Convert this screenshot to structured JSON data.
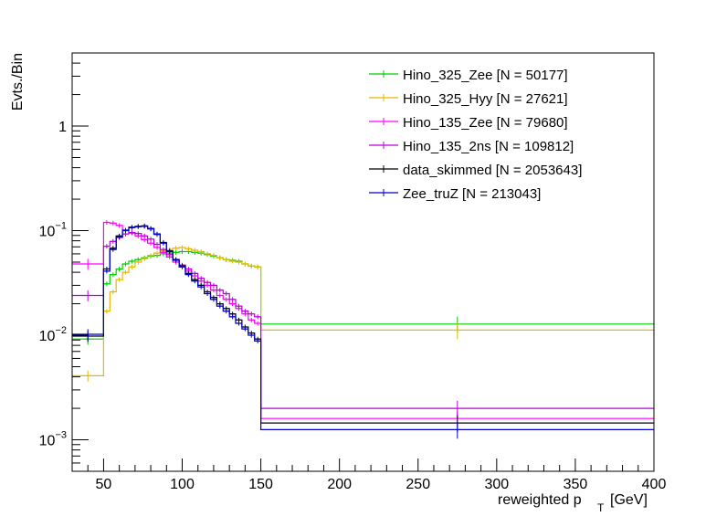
{
  "chart_data": {
    "type": "line",
    "title": "",
    "xlabel_main": "reweighted p",
    "xlabel_sub": "T",
    "xlabel_unit": "[GeV]",
    "ylabel": "Evts./Bin",
    "xlim": [
      30,
      400
    ],
    "ylim": [
      0.0005,
      5
    ],
    "yscale": "log",
    "legend_position": "top-right",
    "x_ticks": [
      50,
      100,
      150,
      200,
      250,
      300,
      350,
      400
    ],
    "x_tick_labels": [
      "50",
      "100",
      "150",
      "200",
      "250",
      "300",
      "350",
      "400"
    ],
    "y_ticks": [
      0.001,
      0.01,
      0.1,
      1
    ],
    "y_tick_labels": [
      {
        "base": "10",
        "exp": "−3"
      },
      {
        "base": "10",
        "exp": "−2"
      },
      {
        "base": "10",
        "exp": "−1"
      },
      {
        "base": "1",
        "exp": ""
      }
    ],
    "series": [
      {
        "name": "Hino_325_Zee [N = 50177]",
        "color": "#00cc00",
        "bins": [
          {
            "x0": 30,
            "x1": 50,
            "y": 0.0092
          },
          {
            "x0": 50,
            "x1": 54,
            "y": 0.031
          },
          {
            "x0": 54,
            "x1": 58,
            "y": 0.038
          },
          {
            "x0": 58,
            "x1": 62,
            "y": 0.043
          },
          {
            "x0": 62,
            "x1": 66,
            "y": 0.048
          },
          {
            "x0": 66,
            "x1": 70,
            "y": 0.051
          },
          {
            "x0": 70,
            "x1": 74,
            "y": 0.053
          },
          {
            "x0": 74,
            "x1": 78,
            "y": 0.055
          },
          {
            "x0": 78,
            "x1": 82,
            "y": 0.057
          },
          {
            "x0": 82,
            "x1": 86,
            "y": 0.058
          },
          {
            "x0": 86,
            "x1": 90,
            "y": 0.06
          },
          {
            "x0": 90,
            "x1": 94,
            "y": 0.061
          },
          {
            "x0": 94,
            "x1": 98,
            "y": 0.062
          },
          {
            "x0": 98,
            "x1": 102,
            "y": 0.063
          },
          {
            "x0": 102,
            "x1": 106,
            "y": 0.063
          },
          {
            "x0": 106,
            "x1": 110,
            "y": 0.062
          },
          {
            "x0": 110,
            "x1": 114,
            "y": 0.061
          },
          {
            "x0": 114,
            "x1": 118,
            "y": 0.059
          },
          {
            "x0": 118,
            "x1": 122,
            "y": 0.057
          },
          {
            "x0": 122,
            "x1": 126,
            "y": 0.055
          },
          {
            "x0": 126,
            "x1": 130,
            "y": 0.053
          },
          {
            "x0": 130,
            "x1": 134,
            "y": 0.052
          },
          {
            "x0": 134,
            "x1": 138,
            "y": 0.051
          },
          {
            "x0": 138,
            "x1": 142,
            "y": 0.048
          },
          {
            "x0": 142,
            "x1": 146,
            "y": 0.046
          },
          {
            "x0": 146,
            "x1": 150,
            "y": 0.045
          },
          {
            "x0": 150,
            "x1": 400,
            "y": 0.0128
          }
        ]
      },
      {
        "name": "Hino_325_Hyy [N = 27621]",
        "color": "#e6b800",
        "bins": [
          {
            "x0": 30,
            "x1": 50,
            "y": 0.0041
          },
          {
            "x0": 50,
            "x1": 54,
            "y": 0.017
          },
          {
            "x0": 54,
            "x1": 58,
            "y": 0.026
          },
          {
            "x0": 58,
            "x1": 62,
            "y": 0.034
          },
          {
            "x0": 62,
            "x1": 66,
            "y": 0.04
          },
          {
            "x0": 66,
            "x1": 70,
            "y": 0.045
          },
          {
            "x0": 70,
            "x1": 74,
            "y": 0.05
          },
          {
            "x0": 74,
            "x1": 78,
            "y": 0.054
          },
          {
            "x0": 78,
            "x1": 82,
            "y": 0.058
          },
          {
            "x0": 82,
            "x1": 86,
            "y": 0.061
          },
          {
            "x0": 86,
            "x1": 90,
            "y": 0.064
          },
          {
            "x0": 90,
            "x1": 94,
            "y": 0.066
          },
          {
            "x0": 94,
            "x1": 98,
            "y": 0.068
          },
          {
            "x0": 98,
            "x1": 102,
            "y": 0.069
          },
          {
            "x0": 102,
            "x1": 106,
            "y": 0.067
          },
          {
            "x0": 106,
            "x1": 110,
            "y": 0.065
          },
          {
            "x0": 110,
            "x1": 114,
            "y": 0.063
          },
          {
            "x0": 114,
            "x1": 118,
            "y": 0.06
          },
          {
            "x0": 118,
            "x1": 122,
            "y": 0.058
          },
          {
            "x0": 122,
            "x1": 126,
            "y": 0.055
          },
          {
            "x0": 126,
            "x1": 130,
            "y": 0.053
          },
          {
            "x0": 130,
            "x1": 134,
            "y": 0.051
          },
          {
            "x0": 134,
            "x1": 138,
            "y": 0.05
          },
          {
            "x0": 138,
            "x1": 142,
            "y": 0.048
          },
          {
            "x0": 142,
            "x1": 146,
            "y": 0.046
          },
          {
            "x0": 146,
            "x1": 150,
            "y": 0.045
          },
          {
            "x0": 150,
            "x1": 400,
            "y": 0.0112
          }
        ]
      },
      {
        "name": "Hino_135_Zee [N = 79680]",
        "color": "#ff00ff",
        "bins": [
          {
            "x0": 30,
            "x1": 50,
            "y": 0.048
          },
          {
            "x0": 50,
            "x1": 54,
            "y": 0.12
          },
          {
            "x0": 54,
            "x1": 58,
            "y": 0.118
          },
          {
            "x0": 58,
            "x1": 62,
            "y": 0.112
          },
          {
            "x0": 62,
            "x1": 66,
            "y": 0.1
          },
          {
            "x0": 66,
            "x1": 70,
            "y": 0.095
          },
          {
            "x0": 70,
            "x1": 74,
            "y": 0.089
          },
          {
            "x0": 74,
            "x1": 78,
            "y": 0.082
          },
          {
            "x0": 78,
            "x1": 82,
            "y": 0.076
          },
          {
            "x0": 82,
            "x1": 86,
            "y": 0.069
          },
          {
            "x0": 86,
            "x1": 90,
            "y": 0.062
          },
          {
            "x0": 90,
            "x1": 94,
            "y": 0.056
          },
          {
            "x0": 94,
            "x1": 98,
            "y": 0.05
          },
          {
            "x0": 98,
            "x1": 102,
            "y": 0.045
          },
          {
            "x0": 102,
            "x1": 106,
            "y": 0.041
          },
          {
            "x0": 106,
            "x1": 110,
            "y": 0.037
          },
          {
            "x0": 110,
            "x1": 114,
            "y": 0.033
          },
          {
            "x0": 114,
            "x1": 118,
            "y": 0.03
          },
          {
            "x0": 118,
            "x1": 122,
            "y": 0.027
          },
          {
            "x0": 122,
            "x1": 126,
            "y": 0.024
          },
          {
            "x0": 126,
            "x1": 130,
            "y": 0.022
          },
          {
            "x0": 130,
            "x1": 134,
            "y": 0.02
          },
          {
            "x0": 134,
            "x1": 138,
            "y": 0.018
          },
          {
            "x0": 138,
            "x1": 142,
            "y": 0.016
          },
          {
            "x0": 142,
            "x1": 146,
            "y": 0.014
          },
          {
            "x0": 146,
            "x1": 150,
            "y": 0.013
          },
          {
            "x0": 150,
            "x1": 400,
            "y": 0.0016
          }
        ]
      },
      {
        "name": "Hino_135_2ns [N = 109812]",
        "color": "#bb00dd",
        "bins": [
          {
            "x0": 30,
            "x1": 50,
            "y": 0.024
          },
          {
            "x0": 50,
            "x1": 54,
            "y": 0.071
          },
          {
            "x0": 54,
            "x1": 58,
            "y": 0.079
          },
          {
            "x0": 58,
            "x1": 62,
            "y": 0.086
          },
          {
            "x0": 62,
            "x1": 66,
            "y": 0.093
          },
          {
            "x0": 66,
            "x1": 70,
            "y": 0.096
          },
          {
            "x0": 70,
            "x1": 74,
            "y": 0.094
          },
          {
            "x0": 74,
            "x1": 78,
            "y": 0.089
          },
          {
            "x0": 78,
            "x1": 82,
            "y": 0.083
          },
          {
            "x0": 82,
            "x1": 86,
            "y": 0.074
          },
          {
            "x0": 86,
            "x1": 90,
            "y": 0.066
          },
          {
            "x0": 90,
            "x1": 94,
            "y": 0.059
          },
          {
            "x0": 94,
            "x1": 98,
            "y": 0.053
          },
          {
            "x0": 98,
            "x1": 102,
            "y": 0.047
          },
          {
            "x0": 102,
            "x1": 106,
            "y": 0.043
          },
          {
            "x0": 106,
            "x1": 110,
            "y": 0.039
          },
          {
            "x0": 110,
            "x1": 114,
            "y": 0.035
          },
          {
            "x0": 114,
            "x1": 118,
            "y": 0.032
          },
          {
            "x0": 118,
            "x1": 122,
            "y": 0.03
          },
          {
            "x0": 122,
            "x1": 126,
            "y": 0.027
          },
          {
            "x0": 126,
            "x1": 130,
            "y": 0.025
          },
          {
            "x0": 130,
            "x1": 134,
            "y": 0.022
          },
          {
            "x0": 134,
            "x1": 138,
            "y": 0.019
          },
          {
            "x0": 138,
            "x1": 142,
            "y": 0.017
          },
          {
            "x0": 142,
            "x1": 146,
            "y": 0.016
          },
          {
            "x0": 146,
            "x1": 150,
            "y": 0.015
          },
          {
            "x0": 150,
            "x1": 400,
            "y": 0.002
          }
        ]
      },
      {
        "name": "data_skimmed [N = 2053643]",
        "color": "#000000",
        "bins": [
          {
            "x0": 30,
            "x1": 50,
            "y": 0.0098
          },
          {
            "x0": 50,
            "x1": 54,
            "y": 0.043
          },
          {
            "x0": 54,
            "x1": 58,
            "y": 0.068
          },
          {
            "x0": 58,
            "x1": 62,
            "y": 0.089
          },
          {
            "x0": 62,
            "x1": 66,
            "y": 0.101
          },
          {
            "x0": 66,
            "x1": 70,
            "y": 0.108
          },
          {
            "x0": 70,
            "x1": 74,
            "y": 0.11
          },
          {
            "x0": 74,
            "x1": 78,
            "y": 0.111
          },
          {
            "x0": 78,
            "x1": 82,
            "y": 0.105
          },
          {
            "x0": 82,
            "x1": 86,
            "y": 0.093
          },
          {
            "x0": 86,
            "x1": 90,
            "y": 0.077
          },
          {
            "x0": 90,
            "x1": 94,
            "y": 0.064
          },
          {
            "x0": 94,
            "x1": 98,
            "y": 0.053
          },
          {
            "x0": 98,
            "x1": 102,
            "y": 0.046
          },
          {
            "x0": 102,
            "x1": 106,
            "y": 0.039
          },
          {
            "x0": 106,
            "x1": 110,
            "y": 0.034
          },
          {
            "x0": 110,
            "x1": 114,
            "y": 0.03
          },
          {
            "x0": 114,
            "x1": 118,
            "y": 0.026
          },
          {
            "x0": 118,
            "x1": 122,
            "y": 0.023
          },
          {
            "x0": 122,
            "x1": 126,
            "y": 0.02
          },
          {
            "x0": 126,
            "x1": 130,
            "y": 0.018
          },
          {
            "x0": 130,
            "x1": 134,
            "y": 0.016
          },
          {
            "x0": 134,
            "x1": 138,
            "y": 0.014
          },
          {
            "x0": 138,
            "x1": 142,
            "y": 0.012
          },
          {
            "x0": 142,
            "x1": 146,
            "y": 0.0105
          },
          {
            "x0": 146,
            "x1": 150,
            "y": 0.0092
          },
          {
            "x0": 150,
            "x1": 400,
            "y": 0.00145
          }
        ]
      },
      {
        "name": "Zee_truZ [N = 213043]",
        "color": "#0000cc",
        "bins": [
          {
            "x0": 30,
            "x1": 50,
            "y": 0.0102
          },
          {
            "x0": 50,
            "x1": 54,
            "y": 0.041
          },
          {
            "x0": 54,
            "x1": 58,
            "y": 0.066
          },
          {
            "x0": 58,
            "x1": 62,
            "y": 0.087
          },
          {
            "x0": 62,
            "x1": 66,
            "y": 0.1
          },
          {
            "x0": 66,
            "x1": 70,
            "y": 0.107
          },
          {
            "x0": 70,
            "x1": 74,
            "y": 0.109
          },
          {
            "x0": 74,
            "x1": 78,
            "y": 0.11
          },
          {
            "x0": 78,
            "x1": 82,
            "y": 0.104
          },
          {
            "x0": 82,
            "x1": 86,
            "y": 0.092
          },
          {
            "x0": 86,
            "x1": 90,
            "y": 0.076
          },
          {
            "x0": 90,
            "x1": 94,
            "y": 0.063
          },
          {
            "x0": 94,
            "x1": 98,
            "y": 0.052
          },
          {
            "x0": 98,
            "x1": 102,
            "y": 0.045
          },
          {
            "x0": 102,
            "x1": 106,
            "y": 0.038
          },
          {
            "x0": 106,
            "x1": 110,
            "y": 0.033
          },
          {
            "x0": 110,
            "x1": 114,
            "y": 0.029
          },
          {
            "x0": 114,
            "x1": 118,
            "y": 0.025
          },
          {
            "x0": 118,
            "x1": 122,
            "y": 0.022
          },
          {
            "x0": 122,
            "x1": 126,
            "y": 0.019
          },
          {
            "x0": 126,
            "x1": 130,
            "y": 0.017
          },
          {
            "x0": 130,
            "x1": 134,
            "y": 0.015
          },
          {
            "x0": 134,
            "x1": 138,
            "y": 0.013
          },
          {
            "x0": 138,
            "x1": 142,
            "y": 0.0115
          },
          {
            "x0": 142,
            "x1": 146,
            "y": 0.01
          },
          {
            "x0": 146,
            "x1": 150,
            "y": 0.0088
          },
          {
            "x0": 150,
            "x1": 400,
            "y": 0.00125
          }
        ]
      }
    ]
  }
}
